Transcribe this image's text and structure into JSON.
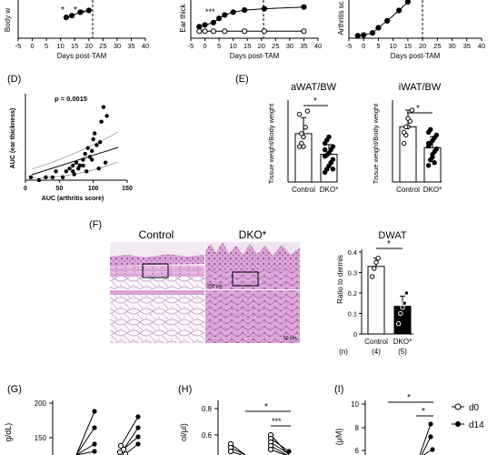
{
  "chart_data": [
    {
      "panel": "top-left",
      "type": "line",
      "ylabel": "Body w",
      "xlabel": "Days post-TAM",
      "x_ticks": [
        "-5",
        "0",
        "5",
        "10",
        "15",
        "20",
        "25",
        "30",
        "35",
        "40"
      ],
      "xlim": [
        -5,
        40
      ],
      "annotations": [
        "*",
        "*",
        "*"
      ],
      "series": [
        {
          "x": [
            12,
            14,
            17,
            20
          ],
          "y": [
            0.55,
            0.6,
            0.7,
            0.75
          ]
        }
      ]
    },
    {
      "panel": "top-middle",
      "type": "line",
      "ylabel": "Ear thick",
      "xlabel": "Days post-TAM",
      "x_ticks": [
        "-5",
        "0",
        "5",
        "10",
        "15",
        "20",
        "25",
        "30",
        "35",
        "40"
      ],
      "xlim": [
        -5,
        40
      ],
      "annotations": [
        "***"
      ],
      "series": [
        {
          "x": [
            -2,
            0,
            3,
            5,
            7,
            10,
            14,
            21,
            35
          ],
          "y": [
            0.28,
            0.33,
            0.4,
            0.52,
            0.62,
            0.7,
            0.76,
            0.8,
            0.85
          ]
        },
        {
          "x": [
            -2,
            0,
            3,
            7,
            14,
            21,
            35
          ],
          "y": [
            0.15,
            0.15,
            0.15,
            0.15,
            0.15,
            0.15,
            0.15
          ]
        }
      ]
    },
    {
      "panel": "top-right",
      "type": "line",
      "ylabel": "Arthritis sc",
      "xlabel": "Days post-TAM",
      "x_ticks": [
        "-5",
        "0",
        "5",
        "10",
        "15",
        "20",
        "25",
        "30",
        "35",
        "40"
      ],
      "xlim": [
        -5,
        40
      ],
      "series": [
        {
          "x": [
            -2,
            0,
            3,
            5,
            8,
            12,
            15
          ],
          "y": [
            0.02,
            0.04,
            0.1,
            0.25,
            0.45,
            0.75,
            1.0
          ]
        }
      ]
    },
    {
      "panel": "D",
      "type": "scatter",
      "xlabel": "AUC (arthritis score)",
      "ylabel": "AUC (ear thickness)",
      "annotation": "p = 0.0015",
      "x_ticks": [
        "0",
        "50",
        "100",
        "150"
      ],
      "xlim": [
        0,
        150
      ],
      "ylim": [
        0,
        28
      ],
      "points": [
        [
          8,
          1
        ],
        [
          55,
          1
        ],
        [
          60,
          3
        ],
        [
          65,
          4
        ],
        [
          70,
          5
        ],
        [
          75,
          6
        ],
        [
          80,
          5
        ],
        [
          85,
          7
        ],
        [
          88,
          9
        ],
        [
          90,
          3
        ],
        [
          92,
          11
        ],
        [
          95,
          8
        ],
        [
          98,
          7
        ],
        [
          100,
          14
        ],
        [
          102,
          16
        ],
        [
          105,
          12
        ],
        [
          108,
          4
        ],
        [
          110,
          13
        ],
        [
          112,
          20
        ],
        [
          115,
          25
        ],
        [
          118,
          6
        ],
        [
          120,
          22
        ],
        [
          98,
          10
        ],
        [
          85,
          5
        ],
        [
          78,
          4
        ],
        [
          70,
          3
        ],
        [
          72,
          2
        ],
        [
          45,
          3
        ],
        [
          40,
          1
        ],
        [
          30,
          1
        ],
        [
          20,
          0
        ]
      ]
    },
    {
      "panel": "E-left",
      "type": "bar",
      "title": "aWAT/BW",
      "ylabel": "Tissue weight/Body weight",
      "categories": [
        "Control",
        "DKO*"
      ],
      "values": [
        0.75,
        0.43
      ],
      "errors": [
        0.25,
        0.15
      ],
      "annotation": "*",
      "points": [
        [
          0.55,
          0.6,
          0.7,
          0.85,
          1.1,
          1.05,
          0.75,
          0.55
        ],
        [
          0.15,
          0.2,
          0.25,
          0.3,
          0.35,
          0.4,
          0.42,
          0.45,
          0.5,
          0.55,
          0.6,
          0.65,
          0.7,
          0.3,
          0.2,
          0.5
        ]
      ]
    },
    {
      "panel": "E-right",
      "type": "bar",
      "title": "iWAT/BW",
      "ylabel": "Tissue weight/Body weight",
      "categories": [
        "Control",
        "DKO*"
      ],
      "values": [
        1.0,
        0.62
      ],
      "errors": [
        0.3,
        0.2
      ],
      "annotation": "*",
      "points": [
        [
          0.7,
          0.85,
          1.0,
          1.1,
          1.3,
          0.9,
          1.0,
          1.15
        ],
        [
          0.3,
          0.4,
          0.5,
          0.55,
          0.6,
          0.65,
          0.7,
          0.75,
          0.8,
          0.85,
          0.9,
          0.95,
          0.45,
          0.35,
          0.6,
          0.7
        ]
      ]
    },
    {
      "panel": "F",
      "type": "bar",
      "title": "DWAT",
      "ylabel": "Ratio to dermis",
      "categories": [
        "Control",
        "DKO*"
      ],
      "n_labels": [
        "(4)",
        "(5)"
      ],
      "n_prefix": "(n)",
      "values": [
        0.33,
        0.135
      ],
      "errors": [
        0.04,
        0.05
      ],
      "ylim": [
        0,
        0.4
      ],
      "y_ticks": [
        "0",
        "0.1",
        "0.2",
        "0.3",
        "0.4"
      ],
      "annotation": "*",
      "points": [
        [
          0.28,
          0.32,
          0.35,
          0.37
        ],
        [
          0.05,
          0.1,
          0.13,
          0.15,
          0.2
        ]
      ],
      "image_labels": [
        "Control",
        "DKO*"
      ]
    },
    {
      "panel": "G",
      "type": "line",
      "ylabel": "g/dL)",
      "y_ticks": [
        "200",
        "150"
      ],
      "ylim": [
        100,
        200
      ]
    },
    {
      "panel": "H",
      "type": "line",
      "ylabel": "ol/μl)",
      "y_ticks": [
        "0.8",
        "0.6"
      ],
      "ylim": [
        0.4,
        0.8
      ],
      "annotations": [
        "*",
        "***"
      ]
    },
    {
      "panel": "I",
      "type": "line",
      "ylabel": "(μM)",
      "y_ticks": [
        "10",
        "8",
        "6"
      ],
      "ylim": [
        5,
        10
      ],
      "annotations": [
        "*",
        "*"
      ],
      "legend": [
        "d0",
        "d14"
      ],
      "legend_position": "right"
    }
  ],
  "panel_letters": {
    "d": "(D)",
    "e": "(E)",
    "f": "(F)",
    "g": "(G)",
    "h": "(H)",
    "i": "(I)"
  },
  "histology": {
    "scale_top": "200 μm",
    "scale_bottom": "50 μm"
  }
}
